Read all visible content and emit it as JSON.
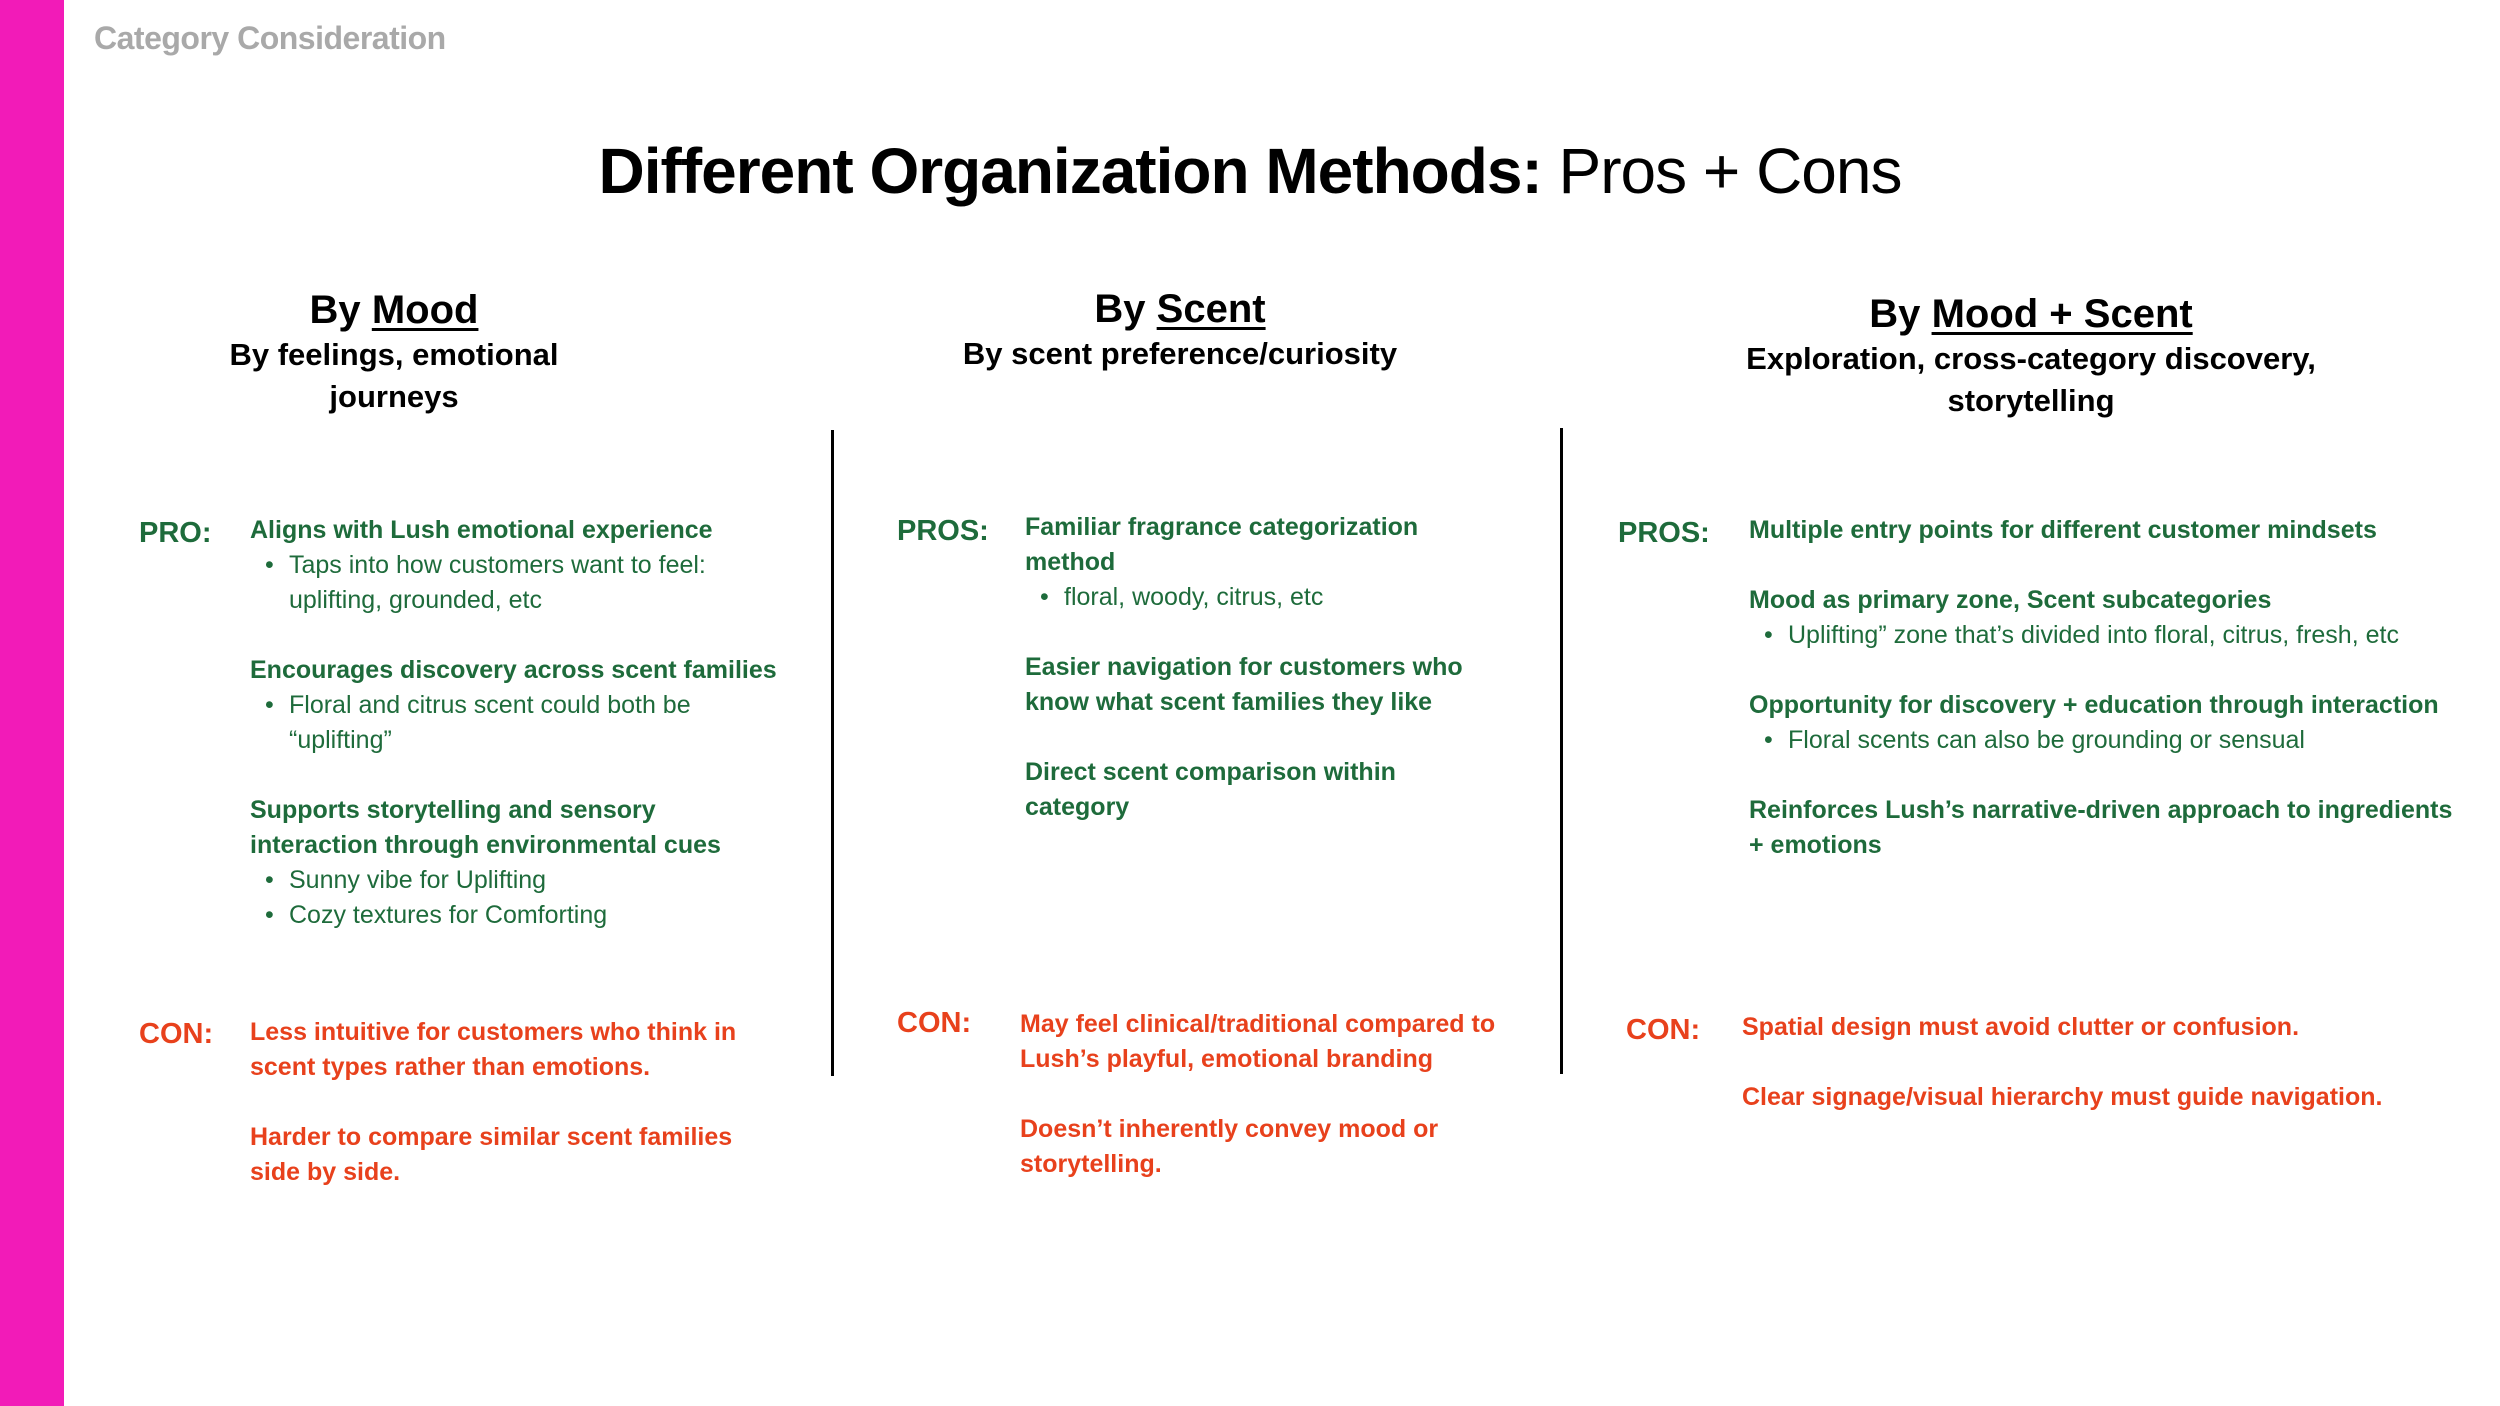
{
  "header": {
    "kicker": "Category Consideration"
  },
  "title": {
    "bold": "Different Organization Methods:",
    "light": "Pros + Cons"
  },
  "colors": {
    "accent_bar": "#f21bb8",
    "pro": "#1e6b3b",
    "con": "#e8411c",
    "kicker": "#a9a9a9"
  },
  "columns": [
    {
      "heading_prefix": "By",
      "heading_key": "Mood",
      "subtitle": "By feelings, emotional journeys",
      "pro_label": "PRO:",
      "pros": [
        {
          "text": "Aligns with Lush emotional experience",
          "bullets": [
            "Taps into how customers want to feel:\nuplifting, grounded, etc"
          ]
        },
        {
          "text": "Encourages discovery across scent families",
          "bullets": [
            "Floral and citrus scent could both be\n“uplifting”"
          ]
        },
        {
          "text": "Supports storytelling and sensory\ninteraction through environmental cues",
          "bullets": [
            "Sunny vibe for Uplifting",
            "Cozy textures for Comforting"
          ]
        }
      ],
      "con_label": "CON:",
      "cons": [
        {
          "text": "Less intuitive for customers who think in\nscent types rather than emotions."
        },
        {
          "text": "Harder to compare similar scent families\nside by side."
        }
      ]
    },
    {
      "heading_prefix": "By",
      "heading_key": "Scent",
      "subtitle": "By scent preference/curiosity",
      "pro_label": "PROS:",
      "pros": [
        {
          "text": "Familiar fragrance categorization\nmethod",
          "bullets": [
            "floral, woody, citrus, etc"
          ]
        },
        {
          "text": "Easier navigation for customers who\nknow what scent families they like",
          "bullets": []
        },
        {
          "text": "Direct scent comparison within\ncategory",
          "bullets": []
        }
      ],
      "con_label": "CON:",
      "cons": [
        {
          "text": "May feel clinical/traditional compared to\nLush’s playful, emotional branding"
        },
        {
          "text": "Doesn’t inherently convey mood or\nstorytelling."
        }
      ]
    },
    {
      "heading_prefix": "By",
      "heading_key": "Mood + Scent",
      "subtitle": "Exploration, cross-category discovery,\nstorytelling",
      "pro_label": "PROS:",
      "pros": [
        {
          "text": "Multiple entry points for different customer mindsets",
          "bullets": []
        },
        {
          "text": "Mood as primary zone, Scent subcategories",
          "bullets": [
            "Uplifting” zone that’s divided into floral, citrus, fresh, etc"
          ]
        },
        {
          "text": "Opportunity for discovery + education through interaction",
          "bullets": [
            "Floral scents can also be grounding or sensual"
          ]
        },
        {
          "text": "Reinforces Lush’s narrative-driven approach to ingredients\n+ emotions",
          "bullets": []
        }
      ],
      "con_label": "CON:",
      "cons": [
        {
          "text": "Spatial design must avoid clutter or confusion."
        },
        {
          "text": "Clear signage/visual hierarchy must guide navigation."
        }
      ]
    }
  ]
}
